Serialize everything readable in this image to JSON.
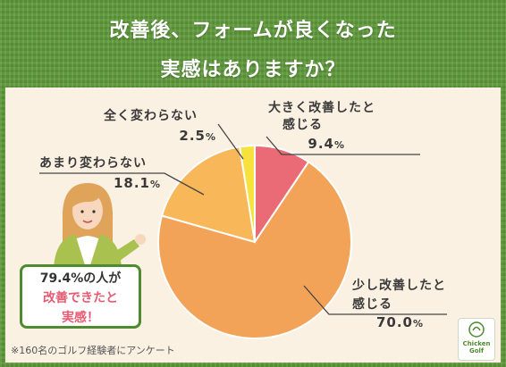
{
  "title": {
    "line1": "改善後、フォームが良くなった",
    "line2": "実感はありますか？"
  },
  "chart_data": {
    "type": "pie",
    "slices": [
      {
        "label_line1": "大きく改善したと",
        "label_line2": "感じる",
        "value": 9.4,
        "value_text": "9.4",
        "color": "#ea6a75"
      },
      {
        "label_line1": "少し改善したと",
        "label_line2": "感じる",
        "value": 70.0,
        "value_text": "70.0",
        "color": "#f3a357"
      },
      {
        "label_line1": "あまり変わらない",
        "label_line2": "",
        "value": 18.1,
        "value_text": "18.1",
        "color": "#f8b758"
      },
      {
        "label_line1": "全く変わらない",
        "label_line2": "",
        "value": 2.5,
        "value_text": "2.5",
        "color": "#f7e23d"
      }
    ],
    "unit": "%",
    "start": "top, clockwise"
  },
  "callout": {
    "line1": "79.4%の人が",
    "line2": "改善できたと",
    "line3": "実感！"
  },
  "footnote": "※160名のゴルフ経験者にアンケート",
  "logo": {
    "line1": "Chicken",
    "line2": "Golf"
  }
}
